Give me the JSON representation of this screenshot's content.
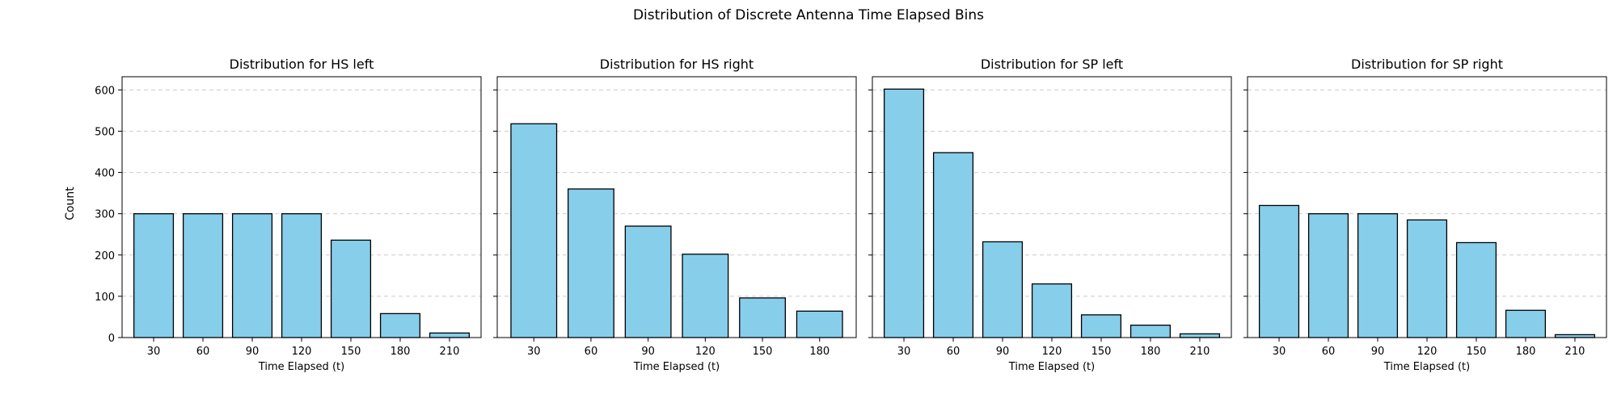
{
  "figure": {
    "suptitle": "Distribution of Discrete Antenna Time Elapsed Bins",
    "ylabel": "Count",
    "bar_color": "#87CEEB",
    "edge_color": "#000000",
    "grid_color": "#cccccc"
  },
  "chart_data": [
    {
      "type": "bar",
      "title": "Distribution for HS left",
      "xlabel": "Time Elapsed (t)",
      "ylabel": "Count",
      "categories": [
        "30",
        "60",
        "90",
        "120",
        "150",
        "180",
        "210"
      ],
      "values": [
        300,
        300,
        300,
        300,
        236,
        58,
        11
      ],
      "ylim": [
        0,
        632
      ],
      "yticks": [
        "0",
        "100",
        "200",
        "300",
        "400",
        "500",
        "600"
      ],
      "grid": "y-dashed"
    },
    {
      "type": "bar",
      "title": "Distribution for HS right",
      "xlabel": "Time Elapsed (t)",
      "ylabel": "",
      "categories": [
        "30",
        "60",
        "90",
        "120",
        "150",
        "180"
      ],
      "values": [
        518,
        360,
        270,
        202,
        96,
        64
      ],
      "ylim": [
        0,
        632
      ],
      "yticks": [
        "0",
        "100",
        "200",
        "300",
        "400",
        "500",
        "600"
      ],
      "grid": "y-dashed"
    },
    {
      "type": "bar",
      "title": "Distribution for SP left",
      "xlabel": "Time Elapsed (t)",
      "ylabel": "",
      "categories": [
        "30",
        "60",
        "90",
        "120",
        "150",
        "180",
        "210"
      ],
      "values": [
        602,
        448,
        232,
        130,
        55,
        30,
        9
      ],
      "ylim": [
        0,
        632
      ],
      "yticks": [
        "0",
        "100",
        "200",
        "300",
        "400",
        "500",
        "600"
      ],
      "grid": "y-dashed"
    },
    {
      "type": "bar",
      "title": "Distribution for SP right",
      "xlabel": "Time Elapsed (t)",
      "ylabel": "",
      "categories": [
        "30",
        "60",
        "90",
        "120",
        "150",
        "180",
        "210"
      ],
      "values": [
        320,
        300,
        300,
        285,
        230,
        66,
        7
      ],
      "ylim": [
        0,
        632
      ],
      "yticks": [
        "0",
        "100",
        "200",
        "300",
        "400",
        "500",
        "600"
      ],
      "grid": "y-dashed"
    }
  ]
}
